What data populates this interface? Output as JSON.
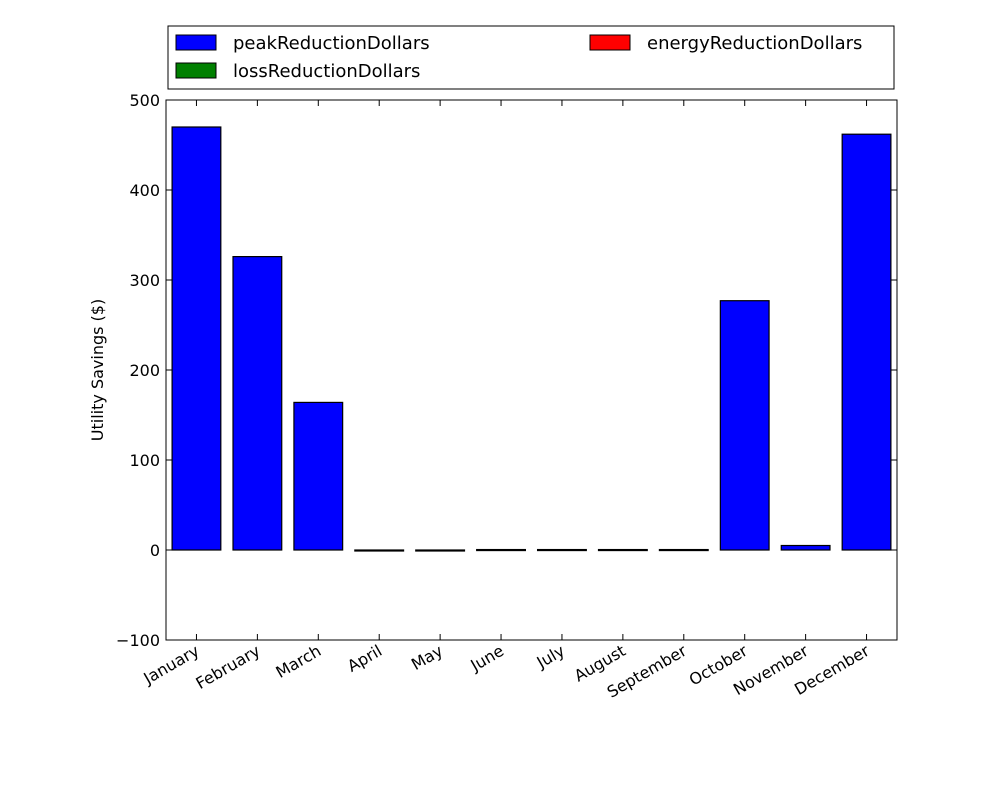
{
  "chart_data": {
    "type": "bar",
    "stacked": true,
    "title": "",
    "xlabel": "",
    "ylabel": "Utility Savings ($)",
    "ylim": [
      -100,
      500
    ],
    "yticks": [
      -100,
      0,
      100,
      200,
      300,
      400,
      500
    ],
    "ytick_labels": [
      "−100",
      "0",
      "100",
      "200",
      "300",
      "400",
      "500"
    ],
    "grid": false,
    "legend_position": "top",
    "categories": [
      "January",
      "February",
      "March",
      "April",
      "May",
      "June",
      "July",
      "August",
      "September",
      "October",
      "November",
      "December"
    ],
    "series": [
      {
        "name": "peakReductionDollars",
        "color": "#0000ff",
        "values": [
          470,
          326,
          164,
          -1,
          -1,
          0.5,
          0.5,
          0.5,
          0.5,
          277,
          5,
          462
        ]
      },
      {
        "name": "energyReductionDollars",
        "color": "#ff0000",
        "values": [
          0,
          0,
          0,
          0,
          0,
          0,
          0,
          0,
          0,
          0,
          0,
          0
        ]
      },
      {
        "name": "lossReductionDollars",
        "color": "#008000",
        "values": [
          0,
          0,
          0,
          0,
          0,
          0,
          0,
          0,
          0,
          0,
          0,
          0
        ]
      }
    ],
    "legend_order": [
      0,
      1,
      2
    ]
  }
}
